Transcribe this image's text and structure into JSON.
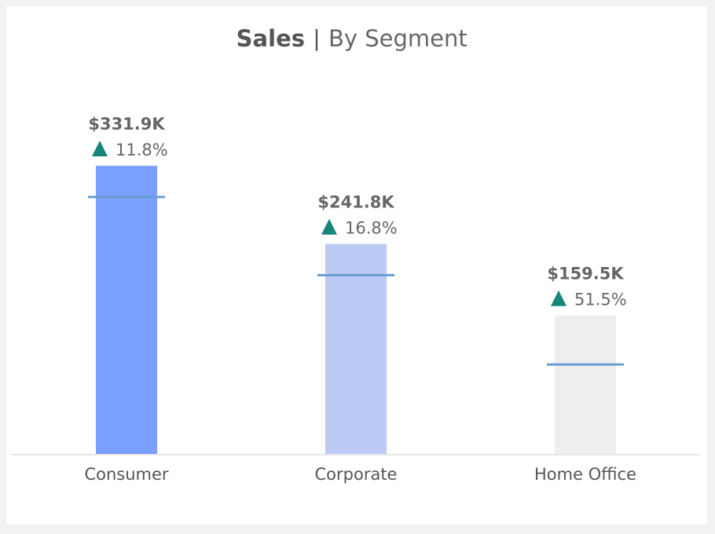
{
  "colors": {
    "page_background": "#f0f3f2",
    "card_background": "#ffffff",
    "target_line": "#6a9ccf",
    "up_arrow": "#178579",
    "baseline": "#e6e6e6"
  },
  "chart_data": {
    "type": "bar",
    "title": "Sales",
    "title_separator": "|",
    "subtitle": "By Segment",
    "categories": [
      "Consumer",
      "Corporate",
      "Home Office"
    ],
    "values": [
      331900,
      241800,
      159500
    ],
    "value_labels": [
      "$331.9K",
      "$241.8K",
      "$159.5K"
    ],
    "target_values": [
      296000,
      206000,
      103000
    ],
    "change_direction": [
      "up",
      "up",
      "up"
    ],
    "change_icon": "triangle-up-icon",
    "change_labels": [
      "11.8%",
      "16.8%",
      "51.5%"
    ],
    "bar_colors": [
      "#7b9fff",
      "#bccbf5",
      "#eeeeee"
    ],
    "ylim": [
      0,
      380000
    ],
    "xlabel": "",
    "ylabel": "",
    "grid": false,
    "legend": "none"
  }
}
